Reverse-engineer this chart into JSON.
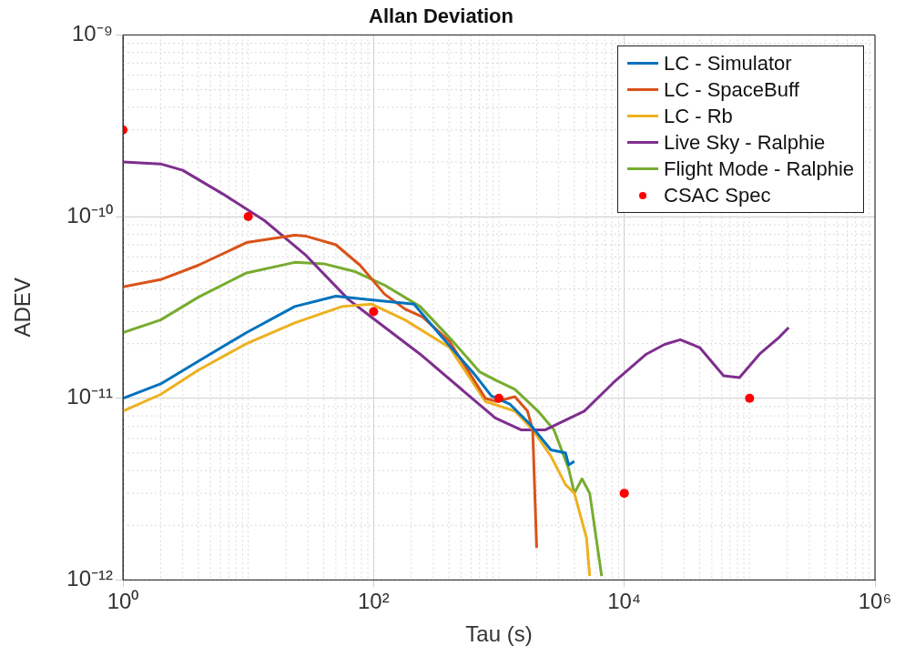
{
  "chart_data": {
    "type": "line",
    "title": "Allan Deviation",
    "xlabel": "Tau (s)",
    "ylabel": "ADEV",
    "log": "xy",
    "grid": true,
    "legend": "top right",
    "line_style": "solid",
    "xlim": [
      1,
      1000000
    ],
    "xticks": [
      {
        "value": 1,
        "label": "10⁰"
      },
      {
        "value": 100,
        "label": "10²"
      },
      {
        "value": 10000,
        "label": "10⁴"
      },
      {
        "value": 1000000,
        "label": "10⁶"
      }
    ],
    "ylim": [
      1e-12,
      1e-09
    ],
    "yticks": [
      {
        "value": 1e-12,
        "label": "10⁻¹²"
      },
      {
        "value": 1e-11,
        "label": "10⁻¹¹"
      },
      {
        "value": 1e-10,
        "label": "10⁻¹⁰"
      },
      {
        "value": 1e-09,
        "label": "10⁻⁹"
      }
    ],
    "series": [
      {
        "name": "LC - Simulator",
        "color": "#0072bd",
        "x": [
          1,
          2,
          4,
          9.7,
          23.5,
          50,
          87,
          210,
          345,
          630,
          870,
          1220,
          1770,
          2600,
          3400,
          3600,
          4000
        ],
        "values": [
          1e-11,
          1.2e-11,
          1.6e-11,
          2.3e-11,
          3.2e-11,
          3.65e-11,
          3.5e-11,
          3.3e-11,
          2.2e-11,
          1.37e-11,
          1.03e-11,
          9.3e-12,
          7.2e-12,
          5.2e-12,
          5e-12,
          4.3e-12,
          4.5e-12
        ]
      },
      {
        "name": "LC - SpaceBuff",
        "color": "#d95319",
        "x": [
          1,
          2,
          4,
          9.7,
          23.5,
          29,
          50,
          78,
          122,
          178,
          246,
          405,
          780,
          960,
          1340,
          1690,
          1860,
          1940,
          2000
        ],
        "values": [
          4.1e-11,
          4.5e-11,
          5.4e-11,
          7.2e-11,
          7.9e-11,
          7.8e-11,
          7e-11,
          5.4e-11,
          3.75e-11,
          3.1e-11,
          2.8e-11,
          2.05e-11,
          1e-11,
          9.6e-12,
          1.02e-11,
          8.5e-12,
          6.7e-12,
          2.8e-12,
          1.5e-12
        ]
      },
      {
        "name": "LC - Rb",
        "color": "#edb120",
        "x": [
          1,
          2,
          4,
          9.7,
          23.5,
          56,
          96,
          178,
          405,
          780,
          1340,
          1860,
          2600,
          3400,
          4000,
          5000,
          5300
        ],
        "values": [
          8.5e-12,
          1.05e-11,
          1.43e-11,
          2e-11,
          2.6e-11,
          3.2e-11,
          3.3e-11,
          2.7e-11,
          1.9e-11,
          9.6e-12,
          8.5e-12,
          6.7e-12,
          4.8e-12,
          3.35e-12,
          3e-12,
          1.7e-12,
          1.05e-12
        ]
      },
      {
        "name": "Live Sky - Ralphie",
        "color": "#7e2f8e",
        "x": [
          1,
          2,
          3,
          6.3,
          13.5,
          29,
          63,
          96,
          235,
          535,
          935,
          1500,
          2350,
          4800,
          8200,
          15000,
          21000,
          28000,
          40000,
          62000,
          83000,
          120000,
          170000,
          205000
        ],
        "values": [
          2e-10,
          1.95e-10,
          1.8e-10,
          1.33e-10,
          9.5e-11,
          6.1e-11,
          3.5e-11,
          2.8e-11,
          1.75e-11,
          1.08e-11,
          7.8e-12,
          6.7e-12,
          6.7e-12,
          8.5e-12,
          1.22e-11,
          1.75e-11,
          1.98e-11,
          2.1e-11,
          1.9e-11,
          1.33e-11,
          1.3e-11,
          1.75e-11,
          2.15e-11,
          2.45e-11
        ]
      },
      {
        "name": "Flight Mode - Ralphie",
        "color": "#77ac30",
        "x": [
          1,
          2,
          4,
          9.7,
          23.5,
          40,
          70,
          122,
          235,
          405,
          700,
          960,
          1340,
          2050,
          2750,
          3600,
          4000,
          4600,
          5300,
          5900,
          6600
        ],
        "values": [
          2.3e-11,
          2.7e-11,
          3.6e-11,
          4.9e-11,
          5.6e-11,
          5.5e-11,
          5e-11,
          4.2e-11,
          3.2e-11,
          2.15e-11,
          1.4e-11,
          1.25e-11,
          1.12e-11,
          8.5e-12,
          6.7e-12,
          4.1e-12,
          3e-12,
          3.6e-12,
          3e-12,
          1.8e-12,
          1.05e-12
        ]
      },
      {
        "name": "CSAC Spec",
        "type": "scatter",
        "marker": "circle",
        "color": "#ff0000",
        "x": [
          1,
          10,
          100,
          1000,
          10000,
          100000
        ],
        "values": [
          3e-10,
          1e-10,
          3e-11,
          1e-11,
          3e-12,
          1e-11
        ]
      }
    ]
  }
}
